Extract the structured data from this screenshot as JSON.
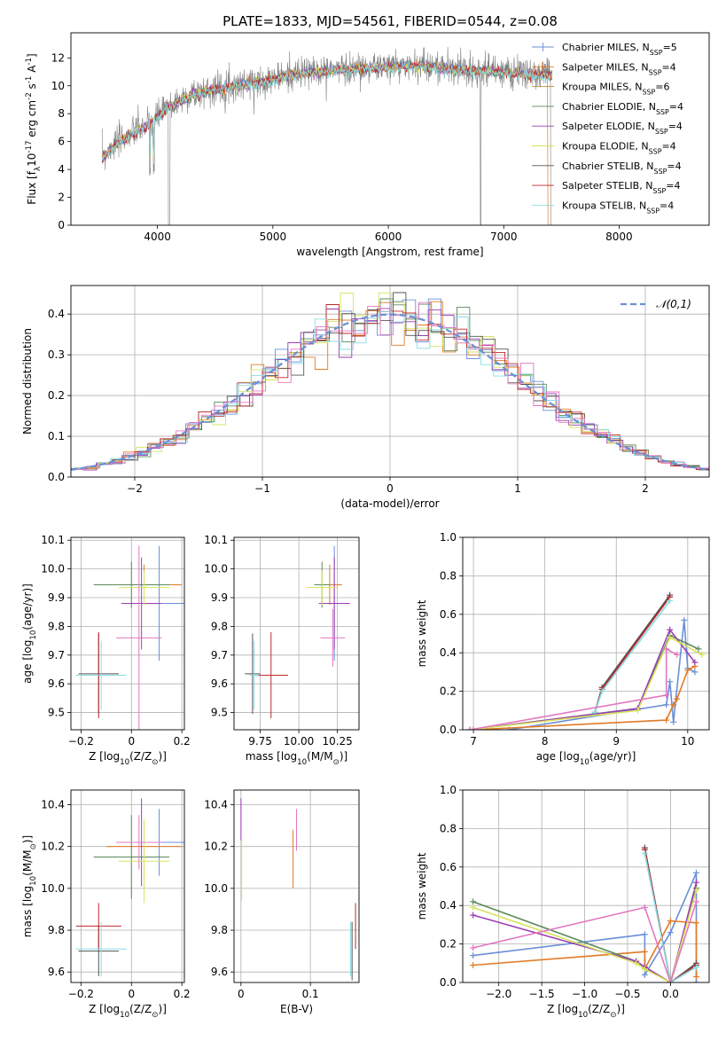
{
  "colors": {
    "blue": "#6a8fd8",
    "orange": "#e07b27",
    "olive": "#c08a3c",
    "green": "#5c8a5c",
    "purple": "#9b3fb5",
    "yellow": "#d6e45a",
    "black": "#555555",
    "red": "#c0282d",
    "cyan": "#86dde3"
  },
  "chart_data": [
    {
      "id": "spectrum",
      "type": "line",
      "title": "PLATE=1833, MJD=54561, FIBERID=0544, z=0.08",
      "xlabel": "wavelength [Angstrom, rest frame]",
      "ylabel": "Flux [f$_\\lambda$10$^{-17}$ erg cm$^{-2}$ s$^{-1}$ A$^{-1}$]",
      "xlim": [
        3250,
        8780
      ],
      "ylim": [
        0,
        13.8
      ],
      "xticks": [
        4000,
        5000,
        6000,
        7000,
        8000
      ],
      "yticks": [
        0,
        2,
        4,
        6,
        8,
        10,
        12
      ],
      "legend_position": "top-right",
      "legend": [
        {
          "label": "Chabrier MILES, N$_{SSP}$=5",
          "color": "#6a8fd8",
          "marker": "+"
        },
        {
          "label": "Salpeter MILES, N$_{SSP}$=4",
          "color": "#e07b27",
          "marker": "+"
        },
        {
          "label": "Kroupa MILES, N$_{SSP}$=6",
          "color": "#c08a3c"
        },
        {
          "label": "Chabrier ELODIE, N$_{SSP}$=4",
          "color": "#5c8a5c"
        },
        {
          "label": "Salpeter ELODIE, N$_{SSP}$=4",
          "color": "#9b3fb5"
        },
        {
          "label": "Kroupa ELODIE, N$_{SSP}$=4",
          "color": "#d6e45a"
        },
        {
          "label": "Chabrier STELIB, N$_{SSP}$=4",
          "color": "#555555"
        },
        {
          "label": "Salpeter STELIB, N$_{SSP}$=4",
          "color": "#c0282d"
        },
        {
          "label": "Kroupa STELIB, N$_{SSP}$=4",
          "color": "#86dde3"
        }
      ],
      "continuum": {
        "x": [
          3520,
          3600,
          3700,
          3800,
          3900,
          4000,
          4100,
          4300,
          4500,
          4700,
          5000,
          5300,
          5600,
          6000,
          6300,
          6600,
          7000,
          7300,
          7420
        ],
        "y": [
          4.8,
          5.6,
          6.2,
          6.7,
          7.1,
          7.8,
          8.5,
          9.4,
          9.8,
          10.1,
          10.5,
          11.0,
          11.2,
          11.4,
          11.5,
          11.2,
          11.0,
          10.8,
          10.9
        ]
      }
    },
    {
      "id": "residuals",
      "type": "bar",
      "xlabel": "(data-model)/error",
      "ylabel": "Normed distribution",
      "xlim": [
        -2.5,
        2.5
      ],
      "ylim": [
        0,
        0.47
      ],
      "xticks": [
        -2,
        -1,
        0,
        1,
        2
      ],
      "yticks": [
        0.0,
        0.1,
        0.2,
        0.3,
        0.4
      ],
      "legend": [
        {
          "label": "$\\mathcal{N}(0,1)$",
          "color": "#6a8fd8",
          "style": "dashed"
        }
      ],
      "bin_width": 0.1
    },
    {
      "id": "age_vs_Z",
      "type": "scatter",
      "xlabel": "Z [log$_{10}$(Z/Z$_\\odot$)]",
      "ylabel": "age  [log$_{10}$(age/yr)]",
      "xlim": [
        -0.24,
        0.21
      ],
      "ylim": [
        9.44,
        10.11
      ],
      "xticks": [
        -0.2,
        0.0,
        0.2
      ],
      "yticks": [
        9.5,
        9.6,
        9.7,
        9.8,
        9.9,
        10.0,
        10.1
      ],
      "points": [
        {
          "color": "#6a8fd8",
          "x": 0.11,
          "y": 9.88,
          "xerr": 0.14,
          "yerr": 0.2
        },
        {
          "color": "#e07b27",
          "x": 0.05,
          "y": 9.945,
          "xerr": 0.15,
          "yerr": 0.07
        },
        {
          "color": "#5c8a5c",
          "x": 0.0,
          "y": 9.945,
          "xerr": 0.15,
          "yerr": 0.08
        },
        {
          "color": "#9b3fb5",
          "x": 0.04,
          "y": 9.88,
          "xerr": 0.08,
          "yerr": 0.16
        },
        {
          "color": "#d6e45a",
          "x": 0.05,
          "y": 9.935,
          "xerr": 0.1,
          "yerr": 0.06
        },
        {
          "color": "#555555",
          "x": -0.13,
          "y": 9.635,
          "xerr": 0.08,
          "yerr": 0.14
        },
        {
          "color": "#c0282d",
          "x": -0.13,
          "y": 9.63,
          "xerr": 0.09,
          "yerr": 0.15
        },
        {
          "color": "#86dde3",
          "x": -0.12,
          "y": 9.63,
          "xerr": 0.1,
          "yerr": 0.12
        },
        {
          "color": "#e377c2",
          "x": 0.03,
          "y": 9.76,
          "xerr": 0.09,
          "yerr": 0.32
        }
      ]
    },
    {
      "id": "age_vs_mass",
      "type": "scatter",
      "xlabel": "mass [log$_{10}$(M/M$_\\odot$)]",
      "ylabel": "",
      "xlim": [
        9.58,
        10.39
      ],
      "ylim": [
        9.44,
        10.11
      ],
      "xticks": [
        9.75,
        10.0,
        10.25
      ],
      "xticklabels": [
        "9.75",
        "10.00",
        "10.25"
      ],
      "yticks": [
        9.5,
        9.6,
        9.7,
        9.8,
        9.9,
        10.0,
        10.1
      ],
      "points": [
        {
          "color": "#6a8fd8",
          "x": 10.23,
          "y": 9.88,
          "xerr": 0.1,
          "yerr": 0.2
        },
        {
          "color": "#e07b27",
          "x": 10.2,
          "y": 9.945,
          "xerr": 0.08,
          "yerr": 0.07
        },
        {
          "color": "#5c8a5c",
          "x": 10.15,
          "y": 9.945,
          "xerr": 0.05,
          "yerr": 0.08
        },
        {
          "color": "#9b3fb5",
          "x": 10.23,
          "y": 9.88,
          "xerr": 0.1,
          "yerr": 0.16
        },
        {
          "color": "#d6e45a",
          "x": 10.15,
          "y": 9.935,
          "xerr": 0.1,
          "yerr": 0.06
        },
        {
          "color": "#555555",
          "x": 9.7,
          "y": 9.635,
          "xerr": 0.05,
          "yerr": 0.14
        },
        {
          "color": "#c0282d",
          "x": 9.82,
          "y": 9.63,
          "xerr": 0.11,
          "yerr": 0.15
        },
        {
          "color": "#86dde3",
          "x": 9.71,
          "y": 9.63,
          "xerr": 0.03,
          "yerr": 0.12
        },
        {
          "color": "#e377c2",
          "x": 10.22,
          "y": 9.76,
          "xerr": 0.08,
          "yerr": 0.1
        }
      ]
    },
    {
      "id": "weight_vs_age",
      "type": "line",
      "xlabel": "age  [log$_{10}$(age/yr)]",
      "ylabel": "mass weight",
      "xlim": [
        6.85,
        10.3
      ],
      "ylim": [
        0,
        1.0
      ],
      "xticks": [
        7,
        8,
        9,
        10
      ],
      "yticks": [
        0.0,
        0.2,
        0.4,
        0.6,
        0.8,
        1.0
      ],
      "series": [
        {
          "color": "#6a8fd8",
          "x": [
            7.5,
            9.7,
            9.75,
            9.8,
            9.95,
            10.0,
            10.1
          ],
          "y": [
            0.0,
            0.13,
            0.25,
            0.04,
            0.57,
            0.32,
            0.3
          ]
        },
        {
          "color": "#e07b27",
          "x": [
            7.0,
            9.7,
            9.8,
            9.85,
            10.0,
            10.1
          ],
          "y": [
            0.0,
            0.05,
            0.13,
            0.16,
            0.31,
            0.33
          ]
        },
        {
          "color": "#5c8a5c",
          "x": [
            6.95,
            9.3,
            9.75,
            10.15
          ],
          "y": [
            0.0,
            0.11,
            0.49,
            0.42
          ]
        },
        {
          "color": "#9b3fb5",
          "x": [
            6.95,
            9.3,
            9.75,
            10.1
          ],
          "y": [
            0.0,
            0.11,
            0.52,
            0.35
          ]
        },
        {
          "color": "#d6e45a",
          "x": [
            6.95,
            9.3,
            9.75,
            10.2
          ],
          "y": [
            0.0,
            0.1,
            0.48,
            0.39
          ]
        },
        {
          "color": "#555555",
          "x": [
            8.7,
            8.8,
            9.75
          ],
          "y": [
            0.09,
            0.22,
            0.7
          ]
        },
        {
          "color": "#c0282d",
          "x": [
            8.7,
            8.8,
            9.75
          ],
          "y": [
            0.09,
            0.21,
            0.69
          ]
        },
        {
          "color": "#86dde3",
          "x": [
            8.7,
            8.8,
            9.75
          ],
          "y": [
            0.09,
            0.2,
            0.67
          ]
        },
        {
          "color": "#e377c2",
          "x": [
            6.95,
            9.7,
            9.7,
            9.85
          ],
          "y": [
            0.0,
            0.18,
            0.42,
            0.39
          ]
        }
      ]
    },
    {
      "id": "mass_vs_Z",
      "type": "scatter",
      "xlabel": "Z [log$_{10}$(Z/Z$_\\odot$)]",
      "ylabel": "mass [log$_{10}$(M/M$_\\odot$)]",
      "xlim": [
        -0.24,
        0.21
      ],
      "ylim": [
        9.55,
        10.47
      ],
      "xticks": [
        -0.2,
        0.0,
        0.2
      ],
      "yticks": [
        9.6,
        9.8,
        10.0,
        10.2,
        10.4
      ],
      "points": [
        {
          "color": "#6a8fd8",
          "x": 0.11,
          "y": 10.22,
          "xerr": 0.14,
          "yerr": 0.16
        },
        {
          "color": "#e07b27",
          "x": 0.05,
          "y": 10.2,
          "xerr": 0.15,
          "yerr": 0.1
        },
        {
          "color": "#5c8a5c",
          "x": 0.0,
          "y": 10.15,
          "xerr": 0.15,
          "yerr": 0.2
        },
        {
          "color": "#9b3fb5",
          "x": 0.04,
          "y": 10.22,
          "xerr": 0.08,
          "yerr": 0.21
        },
        {
          "color": "#d6e45a",
          "x": 0.05,
          "y": 10.13,
          "xerr": 0.1,
          "yerr": 0.2
        },
        {
          "color": "#555555",
          "x": -0.13,
          "y": 9.7,
          "xerr": 0.08,
          "yerr": 0.12
        },
        {
          "color": "#c0282d",
          "x": -0.13,
          "y": 9.82,
          "xerr": 0.09,
          "yerr": 0.11
        },
        {
          "color": "#86dde3",
          "x": -0.12,
          "y": 9.71,
          "xerr": 0.1,
          "yerr": 0.13
        },
        {
          "color": "#e377c2",
          "x": 0.03,
          "y": 10.22,
          "xerr": 0.09,
          "yerr": 0.13
        }
      ]
    },
    {
      "id": "mass_vs_EBV",
      "type": "scatter",
      "xlabel": "E(B-V)",
      "ylabel": "",
      "xlim": [
        -0.01,
        0.17
      ],
      "ylim": [
        9.55,
        10.47
      ],
      "xticks": [
        0.0,
        0.1
      ],
      "yticks": [
        9.6,
        9.8,
        10.0,
        10.2,
        10.4
      ],
      "points": [
        {
          "color": "#555555",
          "x": 0.16,
          "y": 9.7,
          "yerr": 0.14
        },
        {
          "color": "#c0282d",
          "x": 0.165,
          "y": 9.82,
          "yerr": 0.11
        },
        {
          "color": "#86dde3",
          "x": 0.158,
          "y": 9.71,
          "yerr": 0.13
        },
        {
          "color": "#e07b27",
          "x": 0.075,
          "y": 10.14,
          "yerr": 0.14
        },
        {
          "color": "#e377c2",
          "x": 0.08,
          "y": 10.28,
          "yerr": 0.1
        },
        {
          "color": "#9b3fb5",
          "x": 0.0,
          "y": 10.33,
          "yerr": 0.1
        },
        {
          "color": "#d6e45a",
          "x": 0.001,
          "y": 10.1,
          "yerr": 0.16
        }
      ]
    },
    {
      "id": "weight_vs_Z",
      "type": "line",
      "xlabel": "Z [log$_{10}$(Z/Z$_\\odot$)]",
      "ylabel": "mass weight",
      "xlim": [
        -2.42,
        0.45
      ],
      "ylim": [
        0,
        1.0
      ],
      "xticks": [
        -2.0,
        -1.5,
        -1.0,
        -0.5,
        0.0
      ],
      "xticklabels": [
        "−2.0",
        "−1.5",
        "−1.0",
        "−0.5",
        "0.0"
      ],
      "yticks": [
        0.0,
        0.2,
        0.4,
        0.6,
        0.8,
        1.0
      ],
      "series": [
        {
          "color": "#6a8fd8",
          "x": [
            -2.3,
            -0.3,
            -0.3,
            0.0,
            0.3,
            0.3
          ],
          "y": [
            0.14,
            0.25,
            0.04,
            0.26,
            0.57,
            0.0
          ]
        },
        {
          "color": "#e07b27",
          "x": [
            -2.3,
            -0.3,
            -0.3,
            0.0,
            0.3,
            0.3
          ],
          "y": [
            0.09,
            0.16,
            0.07,
            0.32,
            0.31,
            0.03
          ]
        },
        {
          "color": "#5c8a5c",
          "x": [
            -2.3,
            -0.4,
            -0.3,
            0.0,
            0.3
          ],
          "y": [
            0.42,
            0.11,
            0.08,
            0.0,
            0.49
          ]
        },
        {
          "color": "#9b3fb5",
          "x": [
            -2.3,
            -0.4,
            -0.3,
            0.0,
            0.3
          ],
          "y": [
            0.35,
            0.11,
            0.08,
            0.0,
            0.52
          ]
        },
        {
          "color": "#d6e45a",
          "x": [
            -2.3,
            -0.4,
            -0.3,
            0.0,
            0.3
          ],
          "y": [
            0.39,
            0.1,
            0.07,
            0.0,
            0.48
          ]
        },
        {
          "color": "#555555",
          "x": [
            -0.3,
            0.0,
            0.3
          ],
          "y": [
            0.7,
            0.0,
            0.1
          ]
        },
        {
          "color": "#c0282d",
          "x": [
            -0.3,
            0.0,
            0.3
          ],
          "y": [
            0.69,
            0.0,
            0.09
          ]
        },
        {
          "color": "#86dde3",
          "x": [
            -0.3,
            0.0,
            0.3
          ],
          "y": [
            0.67,
            0.0,
            0.08
          ]
        },
        {
          "color": "#e377c2",
          "x": [
            -2.3,
            -0.3,
            0.0,
            0.3
          ],
          "y": [
            0.18,
            0.39,
            0.0,
            0.42
          ]
        }
      ]
    }
  ]
}
